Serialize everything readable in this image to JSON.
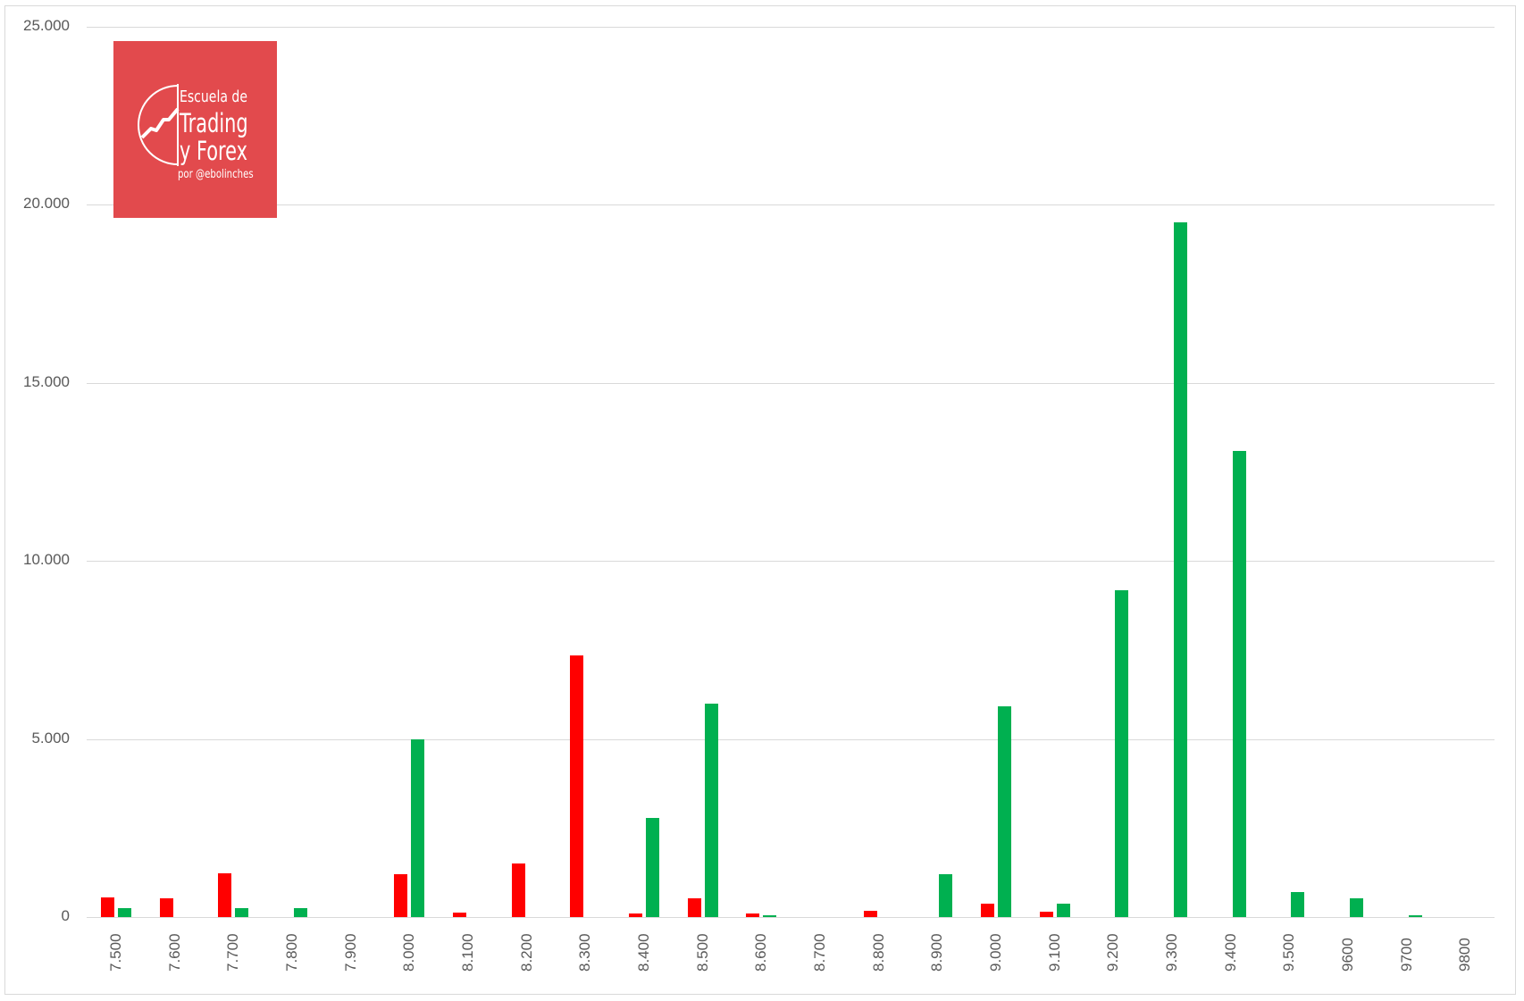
{
  "logo": {
    "line1": "Escuela de",
    "line2": "Trading",
    "line3": "y Forex",
    "line4": "por @ebolinches",
    "background": "#e24a4d"
  },
  "chart_data": {
    "type": "bar",
    "title": "",
    "xlabel": "",
    "ylabel": "",
    "ylim": [
      0,
      25000
    ],
    "yticks": [
      0,
      5000,
      10000,
      15000,
      20000,
      25000
    ],
    "ytick_labels": [
      "0",
      "5.000",
      "10.000",
      "15.000",
      "20.000",
      "25.000"
    ],
    "grid": true,
    "legend": "none",
    "categories": [
      "7.500",
      "7.600",
      "7.700",
      "7.800",
      "7.900",
      "8.000",
      "8.100",
      "8.200",
      "8.300",
      "8.400",
      "8.500",
      "8.600",
      "8.700",
      "8.800",
      "8.900",
      "9.000",
      "9.100",
      "9.200",
      "9.300",
      "9.400",
      "9.500",
      "9600",
      "9700",
      "9800"
    ],
    "series": [
      {
        "name": "red",
        "color": "#ff0000",
        "values": [
          550,
          525,
          1230,
          0,
          0,
          1200,
          125,
          1500,
          7340,
          90,
          525,
          110,
          0,
          175,
          0,
          375,
          150,
          0,
          0,
          0,
          0,
          0,
          0,
          0
        ]
      },
      {
        "name": "green",
        "color": "#00b050",
        "values": [
          250,
          0,
          250,
          250,
          0,
          5000,
          0,
          0,
          0,
          2790,
          6000,
          50,
          0,
          0,
          1200,
          5930,
          375,
          9170,
          19500,
          13090,
          700,
          525,
          50,
          0
        ]
      }
    ]
  }
}
